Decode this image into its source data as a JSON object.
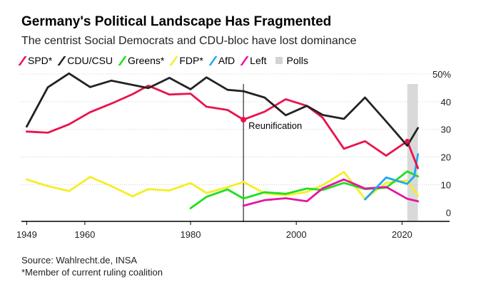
{
  "header": {
    "title": "Germany's Political Landscape Has Fragmented",
    "subtitle": "The centrist Social Democrats and CDU-bloc have lost dominance"
  },
  "legend": [
    {
      "label": "SPD*",
      "color": "#e8134c"
    },
    {
      "label": "CDU/CSU",
      "color": "#222222"
    },
    {
      "label": "Greens*",
      "color": "#1ee01e"
    },
    {
      "label": "FDP*",
      "color": "#f5ee24"
    },
    {
      "label": "AfD",
      "color": "#1fa8f0"
    },
    {
      "label": "Left",
      "color": "#e615a0"
    },
    {
      "label": "Polls",
      "color": "#d3d3d3"
    }
  ],
  "footer": {
    "source": "Source: Wahlrecht.de, INSA",
    "note": "*Member of current ruling coalition"
  },
  "chart_data": {
    "type": "line",
    "title": "Germany's Political Landscape Has Fragmented",
    "xlabel": "",
    "ylabel": "",
    "unit_label": "50%",
    "xlim": [
      1948,
      2029
    ],
    "ylim": [
      -3,
      50
    ],
    "x_ticks": [
      1949,
      1960,
      1980,
      2000,
      2020
    ],
    "y_ticks": [
      0,
      10,
      20,
      30,
      40,
      50
    ],
    "y_tick_labels": [
      "0",
      "10",
      "20",
      "30",
      "40",
      "50%"
    ],
    "polls_band": [
      2021,
      2023
    ],
    "annotations": [
      {
        "text": "Reunification",
        "x": 1990,
        "y": 33.5
      }
    ],
    "series": [
      {
        "name": "SPD*",
        "color": "#e8134c",
        "x": [
          1949,
          1953,
          1957,
          1961,
          1965,
          1969,
          1972,
          1976,
          1980,
          1983,
          1987,
          1990,
          1994,
          1998,
          2002,
          2005,
          2009,
          2013,
          2017,
          2021,
          2023
        ],
        "y": [
          29.2,
          28.8,
          31.8,
          36.2,
          39.3,
          42.7,
          45.8,
          42.6,
          42.9,
          38.2,
          37.0,
          33.5,
          36.4,
          40.9,
          38.5,
          34.2,
          23.0,
          25.7,
          20.5,
          25.7,
          16
        ]
      },
      {
        "name": "CDU/CSU",
        "color": "#222222",
        "x": [
          1949,
          1953,
          1957,
          1961,
          1965,
          1969,
          1972,
          1976,
          1980,
          1983,
          1987,
          1990,
          1994,
          1998,
          2002,
          2005,
          2009,
          2013,
          2017,
          2021,
          2023
        ],
        "y": [
          31.0,
          45.2,
          50.2,
          45.3,
          47.6,
          46.1,
          44.9,
          48.6,
          44.5,
          48.8,
          44.3,
          43.8,
          41.5,
          35.1,
          38.5,
          35.2,
          33.8,
          41.5,
          32.9,
          24.1,
          30.5
        ]
      },
      {
        "name": "Greens*",
        "color": "#1ee01e",
        "x": [
          1980,
          1983,
          1987,
          1990,
          1994,
          1998,
          2002,
          2005,
          2009,
          2013,
          2017,
          2021,
          2023
        ],
        "y": [
          1.5,
          5.6,
          8.3,
          5.0,
          7.3,
          6.7,
          8.6,
          8.1,
          10.7,
          8.4,
          8.9,
          14.8,
          13
        ]
      },
      {
        "name": "FDP*",
        "color": "#f5ee24",
        "x": [
          1949,
          1953,
          1957,
          1961,
          1965,
          1969,
          1972,
          1976,
          1980,
          1983,
          1987,
          1990,
          1994,
          1998,
          2002,
          2005,
          2009,
          2013,
          2017,
          2021,
          2023
        ],
        "y": [
          11.9,
          9.5,
          7.7,
          12.8,
          9.5,
          5.8,
          8.4,
          7.9,
          10.6,
          7.0,
          9.1,
          11.0,
          6.9,
          6.2,
          7.4,
          9.8,
          14.6,
          4.8,
          10.7,
          11.5,
          6
        ]
      },
      {
        "name": "AfD",
        "color": "#1fa8f0",
        "x": [
          2013,
          2017,
          2021,
          2022.3,
          2023
        ],
        "y": [
          4.7,
          12.6,
          10.3,
          13,
          21
        ]
      },
      {
        "name": "Left",
        "color": "#e615a0",
        "x": [
          1990,
          1994,
          1998,
          2002,
          2005,
          2009,
          2013,
          2017,
          2021,
          2023
        ],
        "y": [
          2.4,
          4.4,
          5.1,
          4.0,
          8.7,
          11.9,
          8.6,
          9.2,
          4.9,
          4
        ]
      }
    ]
  }
}
